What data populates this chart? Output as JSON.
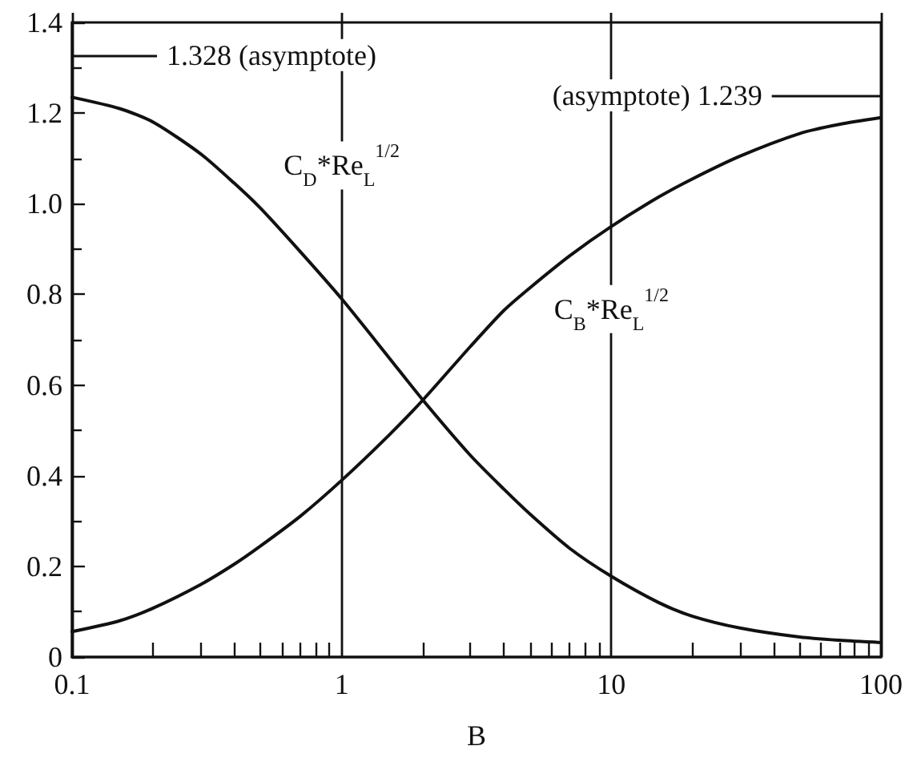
{
  "chart_data": {
    "type": "line",
    "xlabel": "B",
    "log": "x",
    "grid": "x",
    "xlim": [
      0.1,
      100
    ],
    "xticks": [
      0.1,
      {
        "value": 0.2,
        "label": null
      },
      {
        "value": 0.3,
        "label": null
      },
      {
        "value": 0.4,
        "label": null
      },
      {
        "value": 0.5,
        "label": null
      },
      {
        "value": 0.6,
        "label": null
      },
      {
        "value": 0.7,
        "label": null
      },
      {
        "value": 0.8,
        "label": null
      },
      {
        "value": 0.9,
        "label": null
      },
      1,
      {
        "value": 2,
        "label": null
      },
      {
        "value": 3,
        "label": null
      },
      {
        "value": 4,
        "label": null
      },
      {
        "value": 5,
        "label": null
      },
      {
        "value": 6,
        "label": null
      },
      {
        "value": 7,
        "label": null
      },
      {
        "value": 8,
        "label": null
      },
      {
        "value": 9,
        "label": null
      },
      10,
      {
        "value": 20,
        "label": null
      },
      {
        "value": 30,
        "label": null
      },
      {
        "value": 40,
        "label": null
      },
      {
        "value": 50,
        "label": null
      },
      {
        "value": 60,
        "label": null
      },
      {
        "value": 70,
        "label": null
      },
      {
        "value": 80,
        "label": null
      },
      {
        "value": 90,
        "label": null
      },
      100
    ],
    "ylim": [
      0,
      1.4
    ],
    "yticks": [
      0,
      {
        "value": 0.1,
        "label": null
      },
      0.2,
      {
        "value": 0.3,
        "label": null
      },
      0.4,
      {
        "value": 0.5,
        "label": null
      },
      0.6,
      {
        "value": 0.7,
        "label": null
      },
      0.8,
      {
        "value": 0.9,
        "label": null
      },
      {
        "value": 1,
        "label": "1.0"
      },
      {
        "value": 1.1,
        "label": null
      },
      1.2,
      {
        "value": 1.3,
        "label": null
      },
      1.4
    ],
    "series": [
      {
        "name": "C$_{D}$*Re$_{L}$$^{1/2}$",
        "color": "#111111",
        "x": [
          0.1,
          0.15,
          0.2,
          0.3,
          0.4,
          0.5,
          0.7,
          1,
          1.5,
          2,
          3,
          4,
          5,
          7,
          10,
          15,
          20,
          30,
          50,
          70,
          100
        ],
        "values": [
          1.235,
          1.21,
          1.18,
          1.11,
          1.045,
          0.99,
          0.895,
          0.79,
          0.66,
          0.567,
          0.445,
          0.37,
          0.315,
          0.24,
          0.178,
          0.12,
          0.09,
          0.064,
          0.044,
          0.037,
          0.032
        ]
      },
      {
        "name": "C$_{B}$*Re$_{L}$$^{1/2}$",
        "color": "#111111",
        "x": [
          0.1,
          0.15,
          0.2,
          0.3,
          0.4,
          0.5,
          0.7,
          1,
          1.5,
          2,
          3,
          4,
          5,
          7,
          10,
          15,
          20,
          30,
          50,
          70,
          100
        ],
        "values": [
          0.056,
          0.08,
          0.108,
          0.16,
          0.205,
          0.245,
          0.31,
          0.39,
          0.49,
          0.567,
          0.685,
          0.765,
          0.815,
          0.885,
          0.95,
          1.015,
          1.055,
          1.105,
          1.155,
          1.175,
          1.19
        ]
      }
    ],
    "ref_lines": [
      {
        "axis": "y",
        "value": 1.328,
        "label": "1.328 (asymptote)"
      },
      {
        "axis": "y",
        "value": 1.239,
        "label": "(asymptote) 1.239"
      }
    ]
  }
}
